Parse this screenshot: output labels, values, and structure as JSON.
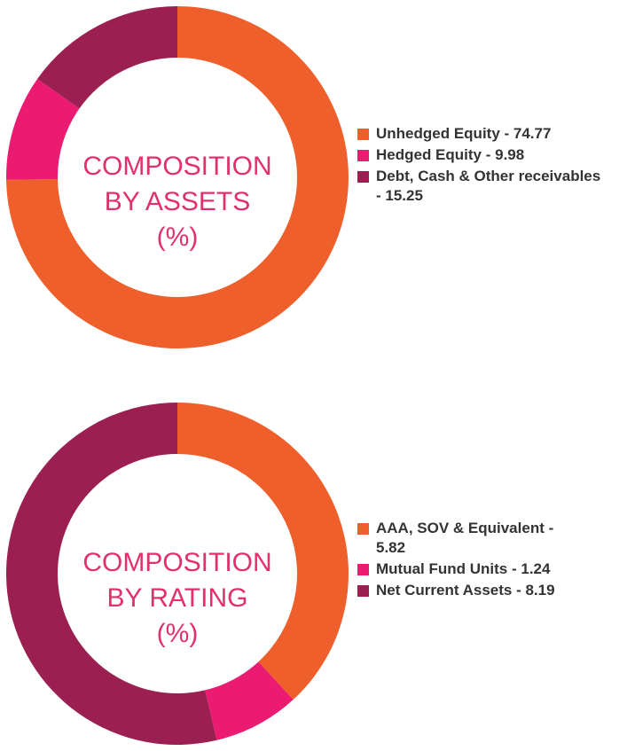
{
  "chart_data": [
    {
      "type": "pie",
      "title": [
        "COMPOSITION",
        "BY ASSETS",
        "(%)"
      ],
      "slices": [
        {
          "label": "Unhedged Equity",
          "value": 74.77,
          "legend_text": "Unhedged Equity - 74.77",
          "color": "#ee5f2b"
        },
        {
          "label": "Hedged Equity",
          "value": 9.98,
          "legend_text": "Hedged Equity - 9.98",
          "color": "#ea1b70"
        },
        {
          "label": "Debt, Cash & Other receivables",
          "value": 15.25,
          "legend_text": [
            "Debt, Cash & Other receivables",
            "- 15.25"
          ],
          "color": "#9c1f52"
        }
      ],
      "legend_position": "right",
      "donut": true
    },
    {
      "type": "pie",
      "title": [
        "COMPOSITION",
        "BY RATING",
        "(%)"
      ],
      "slices": [
        {
          "label": "AAA, SOV & Equivalent",
          "value": 5.82,
          "legend_text": [
            "AAA, SOV & Equivalent -",
            "5.82"
          ],
          "color": "#ee5f2b"
        },
        {
          "label": "Mutual Fund Units",
          "value": 1.24,
          "legend_text": "Mutual Fund Units - 1.24",
          "color": "#ea1b70"
        },
        {
          "label": "Net Current Assets",
          "value": 8.19,
          "legend_text": "Net Current Assets - 8.19",
          "color": "#9c1f52"
        }
      ],
      "legend_position": "right",
      "donut": true
    }
  ],
  "colors": {
    "title": "#e0316e",
    "legend_text": "#333333",
    "background": "#ffffff"
  }
}
